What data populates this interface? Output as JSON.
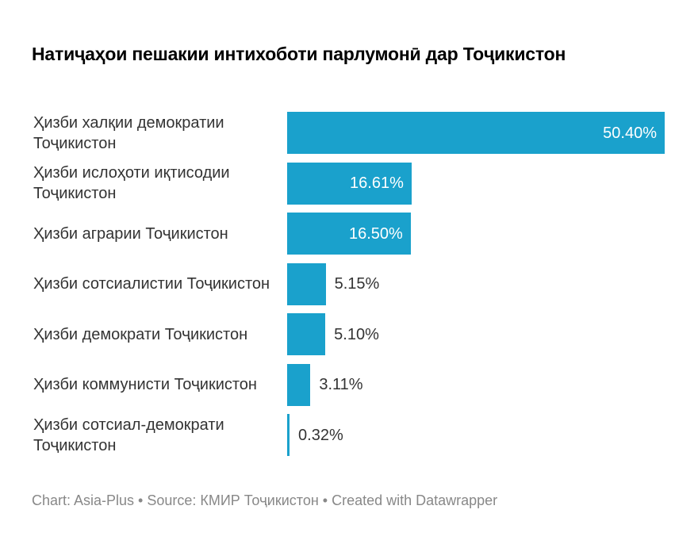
{
  "title": "Натиҷаҳои пешакии интихоботи парлумонӣ дар Тоҷикистон",
  "footer": "Chart: Asia-Plus • Source: КМИР Тоҷикистон • Created with Datawrapper",
  "colors": {
    "bar": "#1aa1cc"
  },
  "chart_data": {
    "type": "bar",
    "orientation": "horizontal",
    "title": "Натиҷаҳои пешакии интихоботи парлумонӣ дар Тоҷикистон",
    "xlabel": "",
    "ylabel": "",
    "xlim": [
      0,
      50.4
    ],
    "grid": false,
    "categories": [
      "Ҳизби халқии демократии Тоҷикистон",
      "Ҳизби ислоҳоти иқтисодии Тоҷикистон",
      "Ҳизби аграрии Тоҷикистон",
      "Ҳизби сотсиалистии Тоҷикистон",
      "Ҳизби демократи Тоҷикистон",
      "Ҳизби коммунисти Тоҷикистон",
      "Ҳизби сотсиал-демократи Тоҷикистон"
    ],
    "values": [
      50.4,
      16.61,
      16.5,
      5.15,
      5.1,
      3.11,
      0.32
    ],
    "value_labels": [
      "50.40%",
      "16.61%",
      "16.50%",
      "5.15%",
      "5.10%",
      "3.11%",
      "0.32%"
    ]
  }
}
